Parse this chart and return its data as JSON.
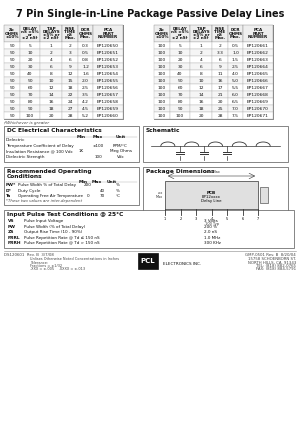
{
  "title": "7 Pin Single-in-Line Package Passive Delay Lines",
  "bg": "#ffffff",
  "t1_headers": [
    "Zo\nOHMS\n±10%",
    "DELAY\nnS ±5%\nor\n±2 nS†",
    "TAP\nDELAYS\n±5% or\n±2 nS†",
    "RISE\nTIME\nnS\nMax.",
    "DCR\nOHMS\nMax.",
    "PCA\nPART\nNUMBER"
  ],
  "t1_data": [
    [
      "50",
      "5",
      "1",
      "2",
      "0.3",
      "EP120650"
    ],
    [
      "50",
      "10",
      "2",
      "3",
      "0.5",
      "EP120651"
    ],
    [
      "50",
      "20",
      "4",
      "6",
      "0.8",
      "EP120652"
    ],
    [
      "50",
      "30",
      "6",
      "9",
      "1.2",
      "EP120653"
    ],
    [
      "50",
      "40",
      "8",
      "12",
      "1.6",
      "EP120654"
    ],
    [
      "50",
      "50",
      "10",
      "15",
      "2.0",
      "EP120655"
    ],
    [
      "50",
      "60",
      "12",
      "18",
      "2.5",
      "EP120656"
    ],
    [
      "50",
      "70",
      "14",
      "22",
      "3.5",
      "EP120657"
    ],
    [
      "50",
      "80",
      "16",
      "24",
      "4.2",
      "EP120658"
    ],
    [
      "50",
      "90",
      "18",
      "27",
      "4.5",
      "EP120659"
    ],
    [
      "50",
      "100",
      "20",
      "28",
      "5.2",
      "EP120660"
    ]
  ],
  "t2_headers": [
    "Zo\nOHMS\n±10%",
    "DELAY\nnS ±5%\nor\n±2 nS†",
    "TAP\nDELAYS\n±5% or\n±2 nS†",
    "RISE\nTIME\nnS\nMax.",
    "DCR\nOHMS\nMax.",
    "PCA\nPART\nNUMBER"
  ],
  "t2_data": [
    [
      "100",
      "5",
      "1",
      "2",
      "0.5",
      "EP120661"
    ],
    [
      "100",
      "10",
      "2",
      "3.3",
      "1.0",
      "EP120662"
    ],
    [
      "100",
      "20",
      "4",
      "6",
      "1.5",
      "EP120663"
    ],
    [
      "100",
      "30",
      "6",
      "9",
      "2.5",
      "EP120664"
    ],
    [
      "100",
      "40",
      "8",
      "11",
      "4.0",
      "EP120665"
    ],
    [
      "100",
      "50",
      "10",
      "16",
      "5.0",
      "EP120666"
    ],
    [
      "100",
      "60",
      "12",
      "17",
      "5.5",
      "EP120667"
    ],
    [
      "100",
      "70",
      "14",
      "21",
      "6.0",
      "EP120668"
    ],
    [
      "100",
      "80",
      "16",
      "20",
      "6.5",
      "EP120669"
    ],
    [
      "100",
      "90",
      "18",
      "25",
      "7.0",
      "EP120670"
    ],
    [
      "100",
      "100",
      "20",
      "28",
      "7.5",
      "EP120671"
    ]
  ],
  "footnote": "†Whichever is greater",
  "dc_title": "DC Electrical Characteristics",
  "dc_col_headers": [
    "",
    "Min",
    "Max",
    "Unit"
  ],
  "dc_rows": [
    [
      "Dielectric",
      "",
      "",
      ""
    ],
    [
      "Temperature Coefficient of Delay",
      "",
      "±100",
      "PPM/°C"
    ],
    [
      "Insulation Resistance @ 100 Vdc",
      "1K",
      "",
      "Meg Ohms"
    ],
    [
      "Dielectric Strength",
      "",
      "100",
      "Vdc"
    ]
  ],
  "sch_title": "Schematic",
  "rec_title": "Recommended Operating\nConditions",
  "rec_col_headers": [
    "",
    "Min",
    "Max",
    "Unit"
  ],
  "rec_rows": [
    [
      "PW*",
      "Pulse Width % of Total Delay",
      "200",
      "",
      "%"
    ],
    [
      "D*",
      "Duty Cycle",
      "",
      "40",
      "%"
    ],
    [
      "Ta",
      "Operating Free Air Temperature",
      "0",
      "70",
      "°C"
    ]
  ],
  "rec_footnote": "*These two values are inter-dependent",
  "pkg_title": "Package Dimensions",
  "inp_title": "Input Pulse Test Conditions @ 25°C",
  "inp_rows": [
    [
      "VS",
      "Pulse Input Voltage",
      "3 Volts"
    ],
    [
      "PW",
      "Pulse Width (% of Total Delay)",
      "200 %"
    ],
    [
      "ZS",
      "Output Rise Time (10 - 90%)",
      "2.0 nS"
    ],
    [
      "PRRL",
      "Pulse Repetition Rate @ Td ≤ 150 nS",
      "1.0 MHz"
    ],
    [
      "PRRH",
      "Pulse Repetition Rate @ Td > 150 nS",
      "300 KHz"
    ]
  ],
  "footer_doc1": "DS120601  Rev. B  3/7/08",
  "footer_doc2": "GMP-0501 Rev. B  8/20/04",
  "footer_addr": "Unlises Otherwise Noted Concentrations in Inches\nTolerance:\nFractions = ±1/32\n.XXX = ±.005    .XXXX = ±.013",
  "footer_logo": "PCL\nELECTRONICS INC.",
  "footer_contact": "15758 SCHOENBORN ST.\nNORTH HILLS, CA. 91343\nTEL: (818) 882-0765\nFAX: (818) 884-5791"
}
